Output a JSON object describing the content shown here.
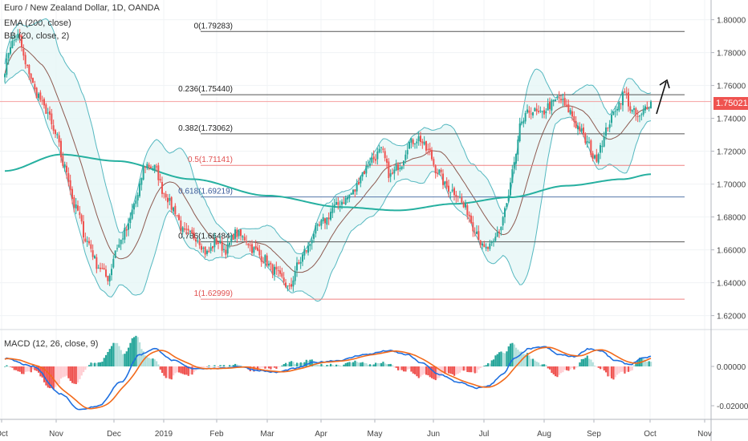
{
  "legend": {
    "title": "Euro / New Zealand Dollar, 1D, OANDA",
    "ema": "EMA (200, close)",
    "bb": "BB (20, close, 2)",
    "macd": "MACD (12, 26, close, 9)"
  },
  "current_price": "1.75021",
  "colors": {
    "up": "#26a69a",
    "down": "#ef5350",
    "ema": "#26b0a0",
    "bb_basis": "#8d5a50",
    "bb_band": "#55b8c0",
    "bb_fill": "#e6f6f6",
    "fib_black": "#555555",
    "fib_red": "#f08080",
    "fib_blue": "#5577aa",
    "macd_line": "#1e6fe0",
    "signal_line": "#f26a1b"
  },
  "chart_data": {
    "type": "candlestick",
    "x_axis": [
      "Oct",
      "Nov",
      "Dec",
      "2019",
      "Feb",
      "Mar",
      "Apr",
      "May",
      "Jun",
      "Jul",
      "Aug",
      "Sep",
      "Oct",
      "Nov"
    ],
    "price_axis": [
      "1.80000",
      "1.78000",
      "1.76000",
      "1.74000",
      "1.72000",
      "1.70000",
      "1.68000",
      "1.66000",
      "1.64000",
      "1.62000"
    ],
    "macd_axis": [
      "0.00000",
      "-0.02000"
    ],
    "ylim": [
      1.612,
      1.812
    ],
    "fib_levels": [
      {
        "label": "0(1.79283)",
        "value": 1.79283,
        "color": "black"
      },
      {
        "label": "0.236(1.75440)",
        "value": 1.7544,
        "color": "black"
      },
      {
        "label": "0.382(1.73062)",
        "value": 1.73062,
        "color": "black"
      },
      {
        "label": "0.5(1.71141)",
        "value": 1.71141,
        "color": "red"
      },
      {
        "label": "0.618(1.69219)",
        "value": 1.69219,
        "color": "blue"
      },
      {
        "label": "0.786(1.66484)",
        "value": 1.66484,
        "color": "black"
      },
      {
        "label": "1(1.62999)",
        "value": 1.62999,
        "color": "red"
      }
    ],
    "close_anchors": [
      [
        0,
        1.77
      ],
      [
        3,
        1.785
      ],
      [
        7,
        1.79
      ],
      [
        12,
        1.77
      ],
      [
        17,
        1.755
      ],
      [
        22,
        1.745
      ],
      [
        27,
        1.73
      ],
      [
        32,
        1.71
      ],
      [
        38,
        1.685
      ],
      [
        44,
        1.665
      ],
      [
        50,
        1.65
      ],
      [
        55,
        1.643
      ],
      [
        60,
        1.662
      ],
      [
        65,
        1.672
      ],
      [
        70,
        1.69
      ],
      [
        75,
        1.712
      ],
      [
        80,
        1.71
      ],
      [
        85,
        1.695
      ],
      [
        90,
        1.685
      ],
      [
        96,
        1.67
      ],
      [
        102,
        1.668
      ],
      [
        108,
        1.658
      ],
      [
        113,
        1.665
      ],
      [
        118,
        1.66
      ],
      [
        123,
        1.67
      ],
      [
        128,
        1.667
      ],
      [
        133,
        1.66
      ],
      [
        138,
        1.655
      ],
      [
        143,
        1.648
      ],
      [
        148,
        1.642
      ],
      [
        152,
        1.636
      ],
      [
        156,
        1.65
      ],
      [
        161,
        1.66
      ],
      [
        166,
        1.672
      ],
      [
        171,
        1.678
      ],
      [
        176,
        1.686
      ],
      [
        181,
        1.69
      ],
      [
        186,
        1.695
      ],
      [
        191,
        1.707
      ],
      [
        196,
        1.715
      ],
      [
        201,
        1.72
      ],
      [
        206,
        1.705
      ],
      [
        211,
        1.712
      ],
      [
        216,
        1.725
      ],
      [
        221,
        1.728
      ],
      [
        226,
        1.72
      ],
      [
        231,
        1.708
      ],
      [
        236,
        1.698
      ],
      [
        241,
        1.695
      ],
      [
        246,
        1.685
      ],
      [
        251,
        1.673
      ],
      [
        256,
        1.66
      ],
      [
        260,
        1.662
      ],
      [
        264,
        1.672
      ],
      [
        268,
        1.688
      ],
      [
        272,
        1.712
      ],
      [
        276,
        1.738
      ],
      [
        281,
        1.745
      ],
      [
        286,
        1.742
      ],
      [
        291,
        1.748
      ],
      [
        296,
        1.752
      ],
      [
        301,
        1.745
      ],
      [
        306,
        1.735
      ],
      [
        311,
        1.725
      ],
      [
        315,
        1.715
      ],
      [
        319,
        1.726
      ],
      [
        323,
        1.738
      ],
      [
        327,
        1.748
      ],
      [
        331,
        1.755
      ],
      [
        335,
        1.744
      ],
      [
        339,
        1.74
      ],
      [
        343,
        1.748
      ],
      [
        345,
        1.75
      ]
    ],
    "macd_anchors": [
      [
        0,
        0.004
      ],
      [
        15,
        0.0
      ],
      [
        30,
        -0.014
      ],
      [
        40,
        -0.022
      ],
      [
        50,
        -0.02
      ],
      [
        62,
        -0.008
      ],
      [
        72,
        0.006
      ],
      [
        80,
        0.009
      ],
      [
        90,
        0.003
      ],
      [
        100,
        -0.001
      ],
      [
        115,
        -0.001
      ],
      [
        125,
        0.0
      ],
      [
        135,
        -0.002
      ],
      [
        145,
        -0.003
      ],
      [
        155,
        -0.001
      ],
      [
        165,
        0.002
      ],
      [
        178,
        0.003
      ],
      [
        192,
        0.006
      ],
      [
        205,
        0.008
      ],
      [
        215,
        0.006
      ],
      [
        222,
        0.002
      ],
      [
        232,
        -0.004
      ],
      [
        242,
        -0.008
      ],
      [
        252,
        -0.011
      ],
      [
        258,
        -0.01
      ],
      [
        266,
        -0.004
      ],
      [
        272,
        0.004
      ],
      [
        280,
        0.009
      ],
      [
        288,
        0.01
      ],
      [
        296,
        0.006
      ],
      [
        304,
        0.005
      ],
      [
        312,
        0.009
      ],
      [
        318,
        0.008
      ],
      [
        326,
        0.003
      ],
      [
        334,
        0.001
      ],
      [
        340,
        0.004
      ],
      [
        345,
        0.005
      ]
    ]
  }
}
